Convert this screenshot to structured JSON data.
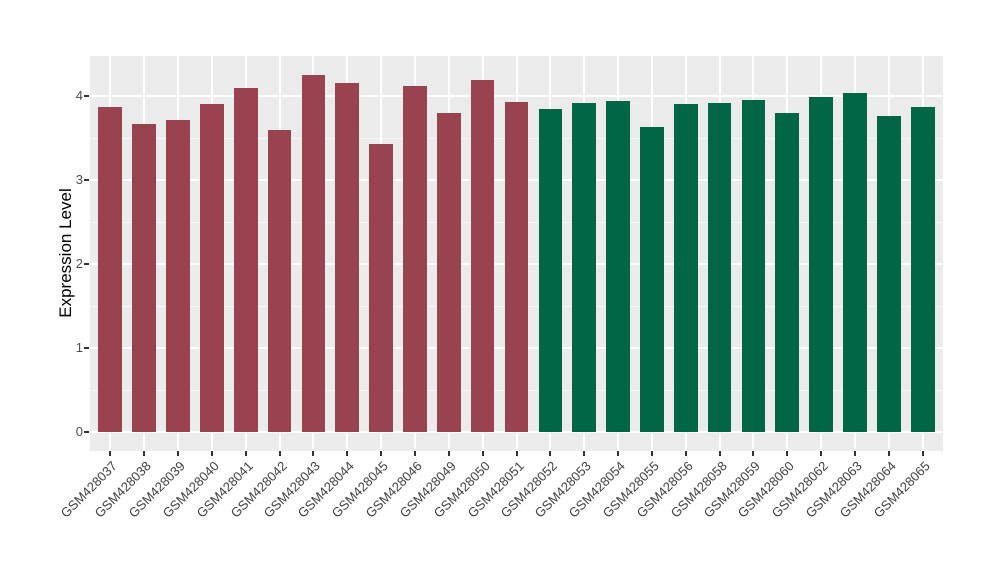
{
  "chart_data": {
    "type": "bar",
    "title": "",
    "xlabel": "",
    "ylabel": "Expression Level",
    "categories": [
      "GSM428037",
      "GSM428038",
      "GSM428039",
      "GSM428040",
      "GSM428041",
      "GSM428042",
      "GSM428043",
      "GSM428044",
      "GSM428045",
      "GSM428046",
      "GSM428049",
      "GSM428050",
      "GSM428051",
      "GSM428052",
      "GSM428053",
      "GSM428054",
      "GSM428055",
      "GSM428056",
      "GSM428058",
      "GSM428059",
      "GSM428060",
      "GSM428062",
      "GSM428063",
      "GSM428064",
      "GSM428065"
    ],
    "values": [
      3.87,
      3.67,
      3.71,
      3.9,
      4.1,
      3.6,
      4.25,
      4.16,
      3.43,
      4.12,
      3.8,
      4.19,
      3.93,
      3.85,
      3.92,
      3.94,
      3.63,
      3.9,
      3.92,
      3.95,
      3.8,
      3.99,
      4.04,
      3.76,
      3.87
    ],
    "bar_colors": [
      "#9A4350",
      "#9A4350",
      "#9A4350",
      "#9A4350",
      "#9A4350",
      "#9A4350",
      "#9A4350",
      "#9A4350",
      "#9A4350",
      "#9A4350",
      "#9A4350",
      "#9A4350",
      "#9A4350",
      "#006645",
      "#006645",
      "#006645",
      "#006645",
      "#006645",
      "#006645",
      "#006645",
      "#006645",
      "#006645",
      "#006645",
      "#006645",
      "#006645"
    ],
    "yticks": [
      0,
      1,
      2,
      3,
      4
    ],
    "ylim": [
      -0.27,
      4.43
    ],
    "grid": "on",
    "legend": "none",
    "panel_background": "#EBEBEB",
    "gridline_color": "#FFFFFF",
    "group1_color": "#9A4350",
    "group2_color": "#006645"
  }
}
